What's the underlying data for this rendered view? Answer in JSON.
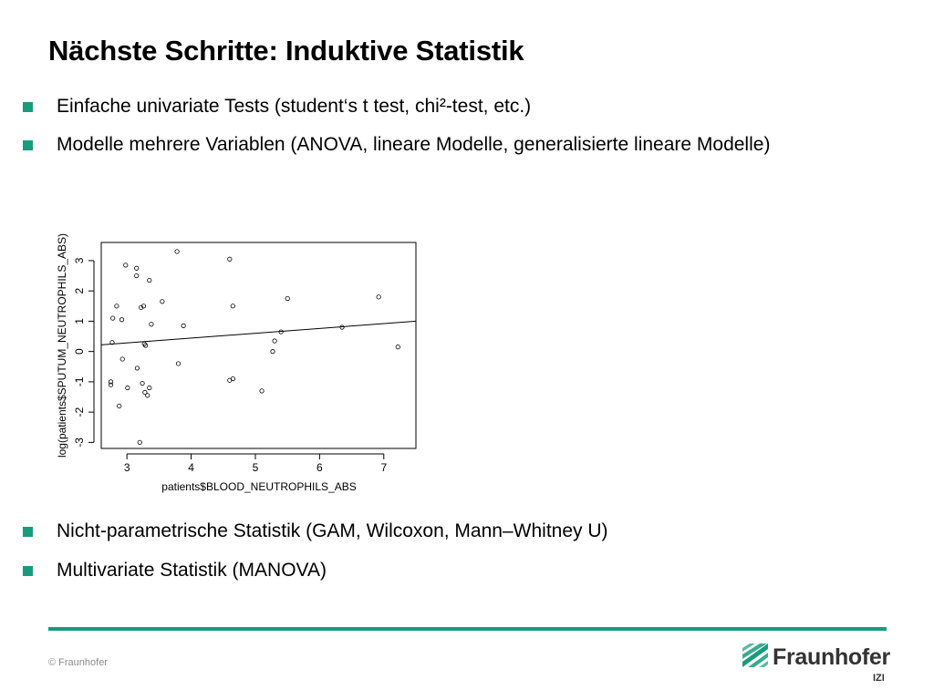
{
  "slide": {
    "title": "Nächste Schritte: Induktive Statistik",
    "bullets_top": [
      "Einfache univariate Tests (student‘s t test, chi²-test, etc.)",
      "Modelle mehrere Variablen (ANOVA, lineare Modelle, generalisierte lineare Modelle)"
    ],
    "bullets_bottom": [
      "Nicht-parametrische Statistik (GAM, Wilcoxon, Mann–Whitney U)",
      "Multivariate Statistik (MANOVA)"
    ]
  },
  "footer": {
    "copyright": "© Fraunhofer",
    "logo_name": "Fraunhofer",
    "logo_sub": "IZI",
    "accent_color": "#179c7d"
  },
  "chart_data": {
    "type": "scatter",
    "title": "",
    "xlabel": "patients$BLOOD_NEUTROPHILS_ABS",
    "ylabel": "log(patients$SPUTUM_NEUTROPHILS_ABS)",
    "xlim": [
      2.6,
      7.5
    ],
    "ylim": [
      -3.2,
      3.6
    ],
    "xticks": [
      3,
      4,
      5,
      6,
      7
    ],
    "yticks": [
      -3,
      -2,
      -1,
      0,
      1,
      2,
      3
    ],
    "grid": false,
    "points": [
      {
        "x": 2.75,
        "y": -1.0
      },
      {
        "x": 2.75,
        "y": -1.1
      },
      {
        "x": 2.77,
        "y": 0.3
      },
      {
        "x": 2.78,
        "y": 1.1
      },
      {
        "x": 2.84,
        "y": 1.5
      },
      {
        "x": 2.88,
        "y": -1.8
      },
      {
        "x": 2.92,
        "y": 1.05
      },
      {
        "x": 2.93,
        "y": -0.25
      },
      {
        "x": 2.98,
        "y": 2.85
      },
      {
        "x": 3.01,
        "y": -1.2
      },
      {
        "x": 3.15,
        "y": 2.75
      },
      {
        "x": 3.15,
        "y": 2.5
      },
      {
        "x": 3.16,
        "y": -0.55
      },
      {
        "x": 3.2,
        "y": -3.0
      },
      {
        "x": 3.22,
        "y": 1.45
      },
      {
        "x": 3.24,
        "y": -1.05
      },
      {
        "x": 3.26,
        "y": 1.5
      },
      {
        "x": 3.27,
        "y": 0.25
      },
      {
        "x": 3.28,
        "y": -1.35
      },
      {
        "x": 3.29,
        "y": 0.2
      },
      {
        "x": 3.32,
        "y": -1.45
      },
      {
        "x": 3.35,
        "y": 2.35
      },
      {
        "x": 3.35,
        "y": -1.2
      },
      {
        "x": 3.38,
        "y": 0.9
      },
      {
        "x": 3.55,
        "y": 1.65
      },
      {
        "x": 3.78,
        "y": 3.3
      },
      {
        "x": 3.8,
        "y": -0.4
      },
      {
        "x": 3.88,
        "y": 0.85
      },
      {
        "x": 4.6,
        "y": 3.05
      },
      {
        "x": 4.6,
        "y": -0.95
      },
      {
        "x": 4.65,
        "y": -0.9
      },
      {
        "x": 4.65,
        "y": 1.5
      },
      {
        "x": 5.1,
        "y": -1.3
      },
      {
        "x": 5.27,
        "y": 0.0
      },
      {
        "x": 5.3,
        "y": 0.35
      },
      {
        "x": 5.4,
        "y": 0.65
      },
      {
        "x": 5.5,
        "y": 1.75
      },
      {
        "x": 6.35,
        "y": 0.8
      },
      {
        "x": 6.92,
        "y": 1.8
      },
      {
        "x": 7.22,
        "y": 0.15
      }
    ],
    "regression_line": {
      "x": [
        2.6,
        7.5
      ],
      "y": [
        0.22,
        1.0
      ]
    }
  }
}
